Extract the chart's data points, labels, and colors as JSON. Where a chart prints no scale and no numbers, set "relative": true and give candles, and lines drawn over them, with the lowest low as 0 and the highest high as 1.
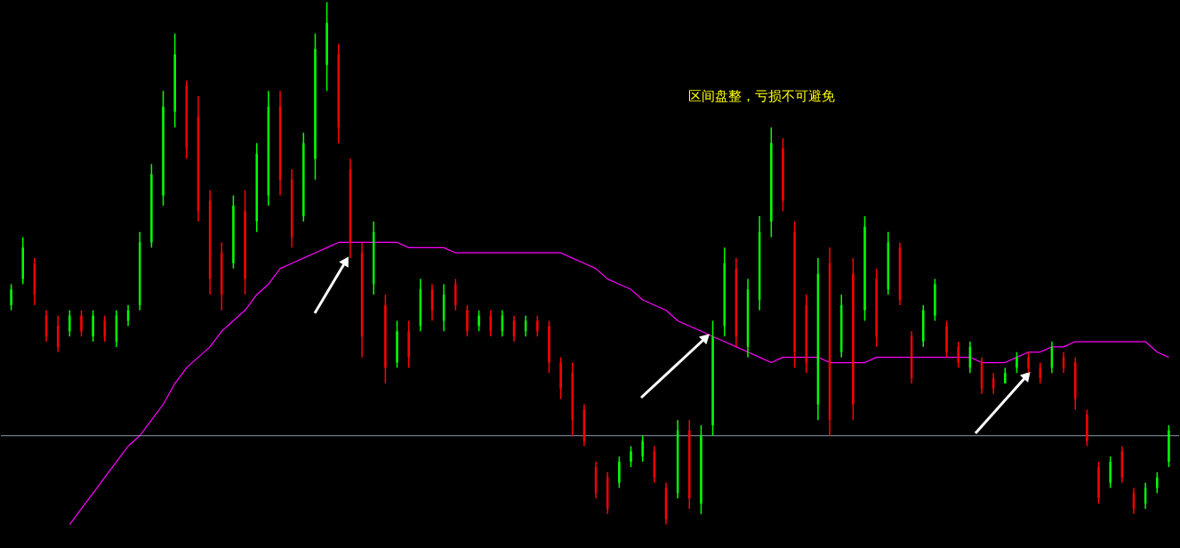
{
  "chart_data": {
    "type": "candlestick",
    "relative": true,
    "categories": [
      null,
      null,
      null,
      null,
      null,
      null,
      null,
      null,
      null,
      null,
      null,
      null,
      null,
      null,
      null,
      null,
      null,
      null,
      null,
      null,
      null,
      null,
      null,
      null,
      null,
      null,
      null,
      null,
      null,
      null,
      null,
      null,
      null,
      null,
      null,
      null,
      null,
      null,
      null,
      null,
      null,
      null,
      null,
      null,
      null,
      null,
      null,
      null,
      null,
      null,
      null,
      null,
      null,
      null,
      null,
      null,
      null,
      null,
      null,
      null,
      null,
      null,
      null,
      null,
      null,
      null,
      null,
      null,
      null,
      null,
      null,
      null,
      null,
      null,
      null,
      null,
      null,
      null,
      null,
      null,
      null,
      null,
      null,
      null,
      null,
      null,
      null,
      null,
      null,
      null,
      null,
      null,
      null,
      null,
      null,
      null,
      null,
      null,
      null,
      null
    ],
    "ohlc": [
      [
        0.42,
        0.46,
        0.41,
        0.45
      ],
      [
        0.47,
        0.55,
        0.46,
        0.53
      ],
      [
        0.5,
        0.51,
        0.42,
        0.44
      ],
      [
        0.4,
        0.41,
        0.35,
        0.36
      ],
      [
        0.38,
        0.4,
        0.33,
        0.34
      ],
      [
        0.37,
        0.41,
        0.36,
        0.4
      ],
      [
        0.4,
        0.41,
        0.36,
        0.37
      ],
      [
        0.36,
        0.41,
        0.35,
        0.4
      ],
      [
        0.39,
        0.4,
        0.35,
        0.36
      ],
      [
        0.35,
        0.41,
        0.34,
        0.4
      ],
      [
        0.39,
        0.42,
        0.38,
        0.41
      ],
      [
        0.42,
        0.56,
        0.41,
        0.54
      ],
      [
        0.54,
        0.69,
        0.53,
        0.67
      ],
      [
        0.63,
        0.83,
        0.61,
        0.8
      ],
      [
        0.79,
        0.94,
        0.76,
        0.9
      ],
      [
        0.84,
        0.85,
        0.7,
        0.72
      ],
      [
        0.78,
        0.82,
        0.58,
        0.6
      ],
      [
        0.62,
        0.64,
        0.44,
        0.47
      ],
      [
        0.52,
        0.54,
        0.41,
        0.44
      ],
      [
        0.5,
        0.63,
        0.49,
        0.61
      ],
      [
        0.6,
        0.64,
        0.44,
        0.47
      ],
      [
        0.58,
        0.73,
        0.56,
        0.71
      ],
      [
        0.63,
        0.83,
        0.61,
        0.8
      ],
      [
        0.8,
        0.83,
        0.63,
        0.66
      ],
      [
        0.66,
        0.68,
        0.53,
        0.55
      ],
      [
        0.59,
        0.75,
        0.58,
        0.73
      ],
      [
        0.7,
        0.94,
        0.66,
        0.91
      ],
      [
        0.88,
        1.0,
        0.83,
        0.96
      ],
      [
        0.9,
        0.92,
        0.73,
        0.76
      ],
      [
        0.68,
        0.7,
        0.51,
        0.54
      ],
      [
        0.52,
        0.54,
        0.32,
        0.36
      ],
      [
        0.46,
        0.58,
        0.44,
        0.56
      ],
      [
        0.42,
        0.44,
        0.27,
        0.3
      ],
      [
        0.31,
        0.39,
        0.3,
        0.37
      ],
      [
        0.37,
        0.39,
        0.3,
        0.32
      ],
      [
        0.38,
        0.47,
        0.37,
        0.45
      ],
      [
        0.45,
        0.46,
        0.39,
        0.41
      ],
      [
        0.39,
        0.46,
        0.37,
        0.44
      ],
      [
        0.46,
        0.47,
        0.41,
        0.42
      ],
      [
        0.41,
        0.42,
        0.36,
        0.37
      ],
      [
        0.38,
        0.41,
        0.37,
        0.4
      ],
      [
        0.4,
        0.41,
        0.36,
        0.37
      ],
      [
        0.37,
        0.41,
        0.36,
        0.4
      ],
      [
        0.39,
        0.4,
        0.35,
        0.36
      ],
      [
        0.37,
        0.4,
        0.36,
        0.39
      ],
      [
        0.39,
        0.4,
        0.36,
        0.37
      ],
      [
        0.38,
        0.39,
        0.29,
        0.31
      ],
      [
        0.31,
        0.32,
        0.24,
        0.26
      ],
      [
        0.29,
        0.31,
        0.17,
        0.2
      ],
      [
        0.22,
        0.23,
        0.15,
        0.16
      ],
      [
        0.11,
        0.12,
        0.05,
        0.06
      ],
      [
        0.09,
        0.1,
        0.02,
        0.03
      ],
      [
        0.08,
        0.13,
        0.07,
        0.12
      ],
      [
        0.12,
        0.15,
        0.11,
        0.14
      ],
      [
        0.13,
        0.17,
        0.12,
        0.16
      ],
      [
        0.14,
        0.15,
        0.08,
        0.09
      ],
      [
        0.07,
        0.08,
        0,
        0.01
      ],
      [
        0.06,
        0.2,
        0.05,
        0.18
      ],
      [
        0.18,
        0.2,
        0.03,
        0.05
      ],
      [
        0.04,
        0.19,
        0.02,
        0.17
      ],
      [
        0.19,
        0.39,
        0.17,
        0.36
      ],
      [
        0.38,
        0.53,
        0.36,
        0.5
      ],
      [
        0.49,
        0.51,
        0.34,
        0.36
      ],
      [
        0.34,
        0.47,
        0.32,
        0.45
      ],
      [
        0.43,
        0.59,
        0.41,
        0.56
      ],
      [
        0.58,
        0.76,
        0.55,
        0.73
      ],
      [
        0.72,
        0.74,
        0.6,
        0.62
      ],
      [
        0.56,
        0.58,
        0.3,
        0.33
      ],
      [
        0.42,
        0.44,
        0.29,
        0.31
      ],
      [
        0.23,
        0.51,
        0.2,
        0.48
      ],
      [
        0.5,
        0.53,
        0.17,
        0.2
      ],
      [
        0.33,
        0.44,
        0.32,
        0.42
      ],
      [
        0.48,
        0.51,
        0.2,
        0.23
      ],
      [
        0.41,
        0.59,
        0.39,
        0.57
      ],
      [
        0.47,
        0.49,
        0.34,
        0.36
      ],
      [
        0.45,
        0.56,
        0.44,
        0.54
      ],
      [
        0.53,
        0.54,
        0.42,
        0.43
      ],
      [
        0.36,
        0.37,
        0.27,
        0.28
      ],
      [
        0.35,
        0.42,
        0.34,
        0.41
      ],
      [
        0.4,
        0.47,
        0.39,
        0.46
      ],
      [
        0.38,
        0.39,
        0.32,
        0.33
      ],
      [
        0.34,
        0.35,
        0.3,
        0.31
      ],
      [
        0.3,
        0.35,
        0.29,
        0.34
      ],
      [
        0.31,
        0.32,
        0.25,
        0.26
      ],
      [
        0.28,
        0.29,
        0.25,
        0.26
      ],
      [
        0.27,
        0.3,
        0.27,
        0.29
      ],
      [
        0.3,
        0.33,
        0.29,
        0.32
      ],
      [
        0.32,
        0.33,
        0.29,
        0.3
      ],
      [
        0.3,
        0.31,
        0.27,
        0.28
      ],
      [
        0.3,
        0.35,
        0.29,
        0.34
      ],
      [
        0.32,
        0.33,
        0.29,
        0.3
      ],
      [
        0.31,
        0.32,
        0.22,
        0.24
      ],
      [
        0.21,
        0.22,
        0.15,
        0.16
      ],
      [
        0.11,
        0.12,
        0.04,
        0.05
      ],
      [
        0.08,
        0.13,
        0.07,
        0.12
      ],
      [
        0.14,
        0.15,
        0.08,
        0.09
      ],
      [
        0.06,
        0.07,
        0.02,
        0.03
      ],
      [
        0.04,
        0.08,
        0.03,
        0.07
      ],
      [
        0.07,
        0.1,
        0.06,
        0.09
      ],
      [
        0.12,
        0.19,
        0.11,
        0.18
      ]
    ],
    "colors": [
      "#00ff00",
      "#00ff00",
      "#ff0000",
      "#ff0000",
      "#ff0000",
      "#00ff00",
      "#ff0000",
      "#00ff00",
      "#ff0000",
      "#00ff00",
      "#00ff00",
      "#00ff00",
      "#00ff00",
      "#00ff00",
      "#00ff00",
      "#ff0000",
      "#ff0000",
      "#ff0000",
      "#ff0000",
      "#00ff00",
      "#ff0000",
      "#00ff00",
      "#00ff00",
      "#ff0000",
      "#ff0000",
      "#00ff00",
      "#00ff00",
      "#00ff00",
      "#ff0000",
      "#ff0000",
      "#ff0000",
      "#00ff00",
      "#ff0000",
      "#00ff00",
      "#ff0000",
      "#00ff00",
      "#ff0000",
      "#00ff00",
      "#ff0000",
      "#ff0000",
      "#00ff00",
      "#ff0000",
      "#00ff00",
      "#ff0000",
      "#00ff00",
      "#ff0000",
      "#ff0000",
      "#ff0000",
      "#ff0000",
      "#ff0000",
      "#ff0000",
      "#ff0000",
      "#00ff00",
      "#00ff00",
      "#00ff00",
      "#ff0000",
      "#ff0000",
      "#00ff00",
      "#ff0000",
      "#00ff00",
      "#00ff00",
      "#00ff00",
      "#ff0000",
      "#00ff00",
      "#00ff00",
      "#00ff00",
      "#ff0000",
      "#ff0000",
      "#ff0000",
      "#00ff00",
      "#ff0000",
      "#00ff00",
      "#ff0000",
      "#00ff00",
      "#ff0000",
      "#00ff00",
      "#ff0000",
      "#ff0000",
      "#00ff00",
      "#00ff00",
      "#ff0000",
      "#ff0000",
      "#00ff00",
      "#ff0000",
      "#ff0000",
      "#00ff00",
      "#00ff00",
      "#ff0000",
      "#ff0000",
      "#00ff00",
      "#ff0000",
      "#ff0000",
      "#ff0000",
      "#ff0000",
      "#00ff00",
      "#ff0000",
      "#ff0000",
      "#00ff00",
      "#00ff00",
      "#00ff00"
    ],
    "series": [
      {
        "type": "line",
        "color": "#ff00ff",
        "values": [
          null,
          null,
          null,
          null,
          null,
          0.0,
          0.03,
          0.06,
          0.09,
          0.12,
          0.15,
          0.17,
          0.2,
          0.23,
          0.27,
          0.3,
          0.32,
          0.34,
          0.37,
          0.39,
          0.41,
          0.44,
          0.46,
          0.49,
          0.5,
          0.51,
          0.52,
          0.53,
          0.54,
          0.54,
          0.54,
          0.54,
          0.54,
          0.54,
          0.53,
          0.53,
          0.53,
          0.53,
          0.52,
          0.52,
          0.52,
          0.52,
          0.52,
          0.52,
          0.52,
          0.52,
          0.52,
          0.52,
          0.51,
          0.5,
          0.49,
          0.47,
          0.46,
          0.45,
          0.43,
          0.42,
          0.41,
          0.39,
          0.38,
          0.37,
          0.36,
          0.35,
          0.34,
          0.33,
          0.32,
          0.31,
          0.32,
          0.32,
          0.32,
          0.32,
          0.31,
          0.31,
          0.31,
          0.31,
          0.32,
          0.32,
          0.32,
          0.32,
          0.32,
          0.32,
          0.32,
          0.32,
          0.32,
          0.31,
          0.31,
          0.31,
          0.32,
          0.33,
          0.33,
          0.34,
          0.34,
          0.35,
          0.35,
          0.35,
          0.35,
          0.35,
          0.35,
          0.35,
          0.33,
          0.32
        ]
      }
    ],
    "ref_lines": [
      {
        "axis": "y",
        "value": 0.17,
        "color": "#8a9bb5"
      }
    ],
    "annotations": [
      "区间盘整，亏损不可避免"
    ]
  }
}
